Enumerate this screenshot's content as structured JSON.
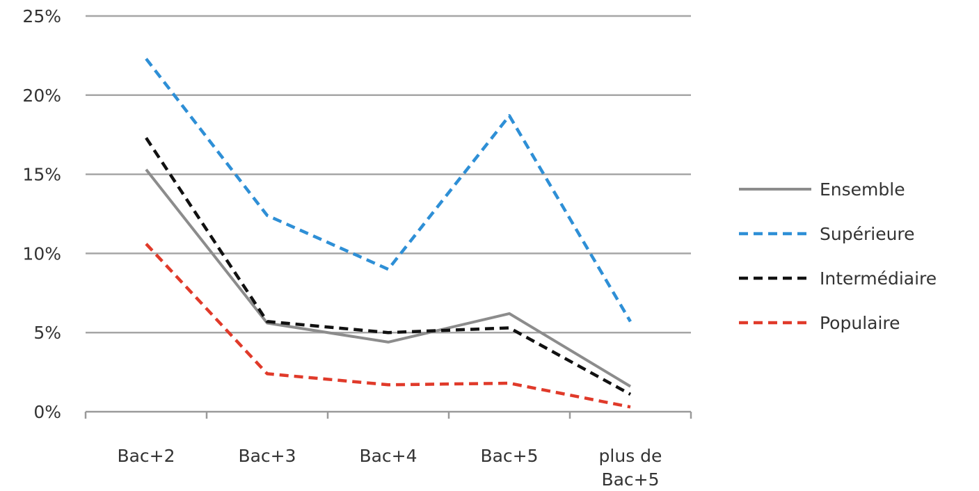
{
  "chart_data": {
    "type": "line",
    "title": "",
    "xlabel": "",
    "ylabel": "",
    "categories": [
      "Bac+2",
      "Bac+3",
      "Bac+4",
      "Bac+5",
      "plus de Bac+5"
    ],
    "category_lines": [
      [
        "Bac+2"
      ],
      [
        "Bac+3"
      ],
      [
        "Bac+4"
      ],
      [
        "Bac+5"
      ],
      [
        "plus de",
        "Bac+5"
      ]
    ],
    "y_ticks": [
      0,
      5,
      10,
      15,
      20,
      25
    ],
    "y_tick_labels": [
      "0%",
      "5%",
      "10%",
      "15%",
      "20%",
      "25%"
    ],
    "ylim": [
      0,
      25
    ],
    "y_unit": "%",
    "grid": "horizontal",
    "legend_position": "right",
    "series": [
      {
        "name": "Ensemble",
        "color": "#8c8c8c",
        "dash": "solid",
        "values": [
          15.3,
          5.6,
          4.4,
          6.2,
          1.6
        ]
      },
      {
        "name": "Supérieure",
        "color": "#2e8fd6",
        "dash": "dashed",
        "values": [
          22.3,
          12.4,
          9.0,
          18.7,
          5.7
        ]
      },
      {
        "name": "Intermédiaire",
        "color": "#111111",
        "dash": "dashed",
        "values": [
          17.3,
          5.7,
          5.0,
          5.3,
          1.1
        ]
      },
      {
        "name": "Populaire",
        "color": "#e03a2a",
        "dash": "dashed",
        "values": [
          10.6,
          2.4,
          1.7,
          1.8,
          0.3
        ]
      }
    ]
  }
}
